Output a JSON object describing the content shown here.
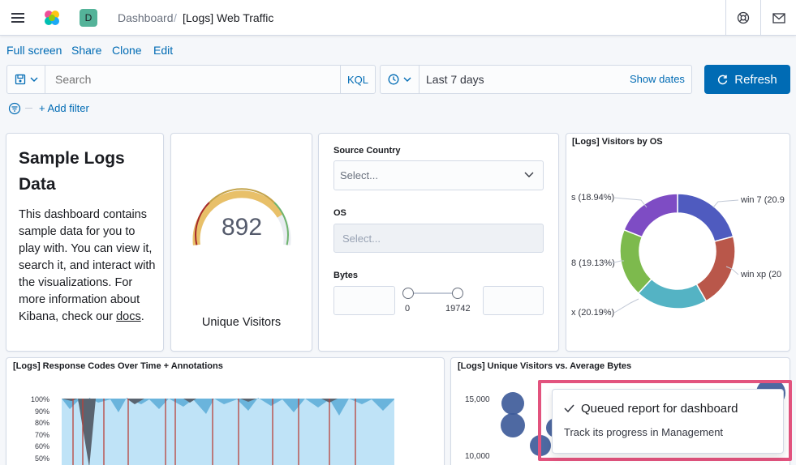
{
  "header": {
    "breadcrumbs": [
      "Dashboard",
      "/",
      "[Logs] Web Traffic"
    ],
    "space_avatar": "D"
  },
  "toolbar": {
    "links": [
      "Full screen",
      "Share",
      "Clone",
      "Edit"
    ]
  },
  "query": {
    "search_placeholder": "Search",
    "kql": "KQL",
    "date_range": "Last 7 days",
    "show_dates": "Show dates",
    "refresh": "Refresh",
    "add_filter": "+ Add filter"
  },
  "markdown": {
    "title": "Sample Logs Data",
    "body": "This dashboard contains sample data for you to play with. You can view it, search it, and interact with the visualizations. For more information about Kibana, check our ",
    "link": "docs",
    "end": "."
  },
  "gauge": {
    "value": "892",
    "label": "Unique Visitors",
    "fraction": 0.8
  },
  "controls": {
    "source_country_label": "Source Country",
    "source_country_placeholder": "Select...",
    "os_label": "OS",
    "os_placeholder": "Select...",
    "bytes_label": "Bytes",
    "bytes_min": "0",
    "bytes_max": "19742"
  },
  "os_chart": {
    "title": "[Logs] Visitors by OS",
    "slice_labels": [
      "s (18.94%)",
      "8 (19.13%)",
      "x (20.19%)",
      "win 7 (20.9",
      "win xp (20"
    ],
    "chart_data": {
      "type": "pie",
      "donut": true,
      "slices": [
        {
          "name": "win 7",
          "value": 20.9,
          "color": "#4f5bbf"
        },
        {
          "name": "win xp",
          "value": 20.8,
          "color": "#b9574a"
        },
        {
          "name": "x",
          "value": 20.19,
          "color": "#54b3c4"
        },
        {
          "name": "8",
          "value": 19.13,
          "color": "#7dba4d"
        },
        {
          "name": "s",
          "value": 18.94,
          "color": "#7e4cc4"
        }
      ]
    }
  },
  "response_chart": {
    "title": "[Logs] Response Codes Over Time + Annotations",
    "y_ticks": [
      "100%",
      "90%",
      "80%",
      "70%",
      "60%",
      "50%"
    ]
  },
  "visitors_bytes_chart": {
    "title": "[Logs] Unique Visitors vs. Average Bytes",
    "y_ticks": [
      "15,000",
      "10,000"
    ]
  },
  "toast": {
    "title": "Queued report for dashboard",
    "body": "Track its progress in Management"
  },
  "colors": {
    "accent": "#006bb4",
    "highlight": "#e2537e"
  }
}
